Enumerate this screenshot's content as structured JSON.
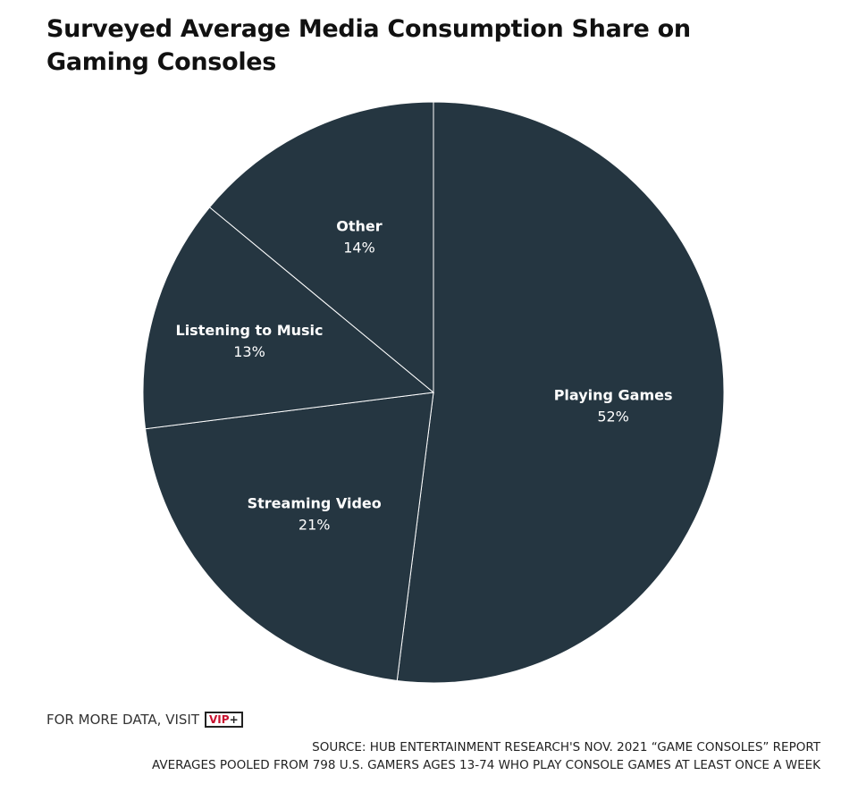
{
  "chart_data": {
    "type": "pie",
    "title": "Surveyed Average Media Consumption Share on Gaming Consoles",
    "categories": [
      "Playing Games",
      "Streaming Video",
      "Listening to Music",
      "Other"
    ],
    "values": [
      52,
      21,
      13,
      14
    ],
    "value_labels": [
      "52%",
      "21%",
      "13%",
      "14%"
    ],
    "unit": "%",
    "start_angle": "12 o'clock",
    "direction": "clockwise",
    "legend": "none (labels on slices)",
    "colors": {
      "slice_fill": "#253641",
      "slice_border": "#ffffff",
      "label_text": "#ffffff"
    }
  },
  "footer": {
    "visit_text": "FOR MORE DATA, VISIT",
    "logo": {
      "vip": "VIP",
      "plus": "+"
    },
    "source_lines": [
      "SOURCE: HUB ENTERTAINMENT RESEARCH'S NOV. 2021 “GAME CONSOLES” REPORT",
      "AVERAGES POOLED FROM 798 U.S. GAMERS AGES 13-74 WHO PLAY CONSOLE GAMES AT LEAST ONCE A WEEK"
    ]
  }
}
